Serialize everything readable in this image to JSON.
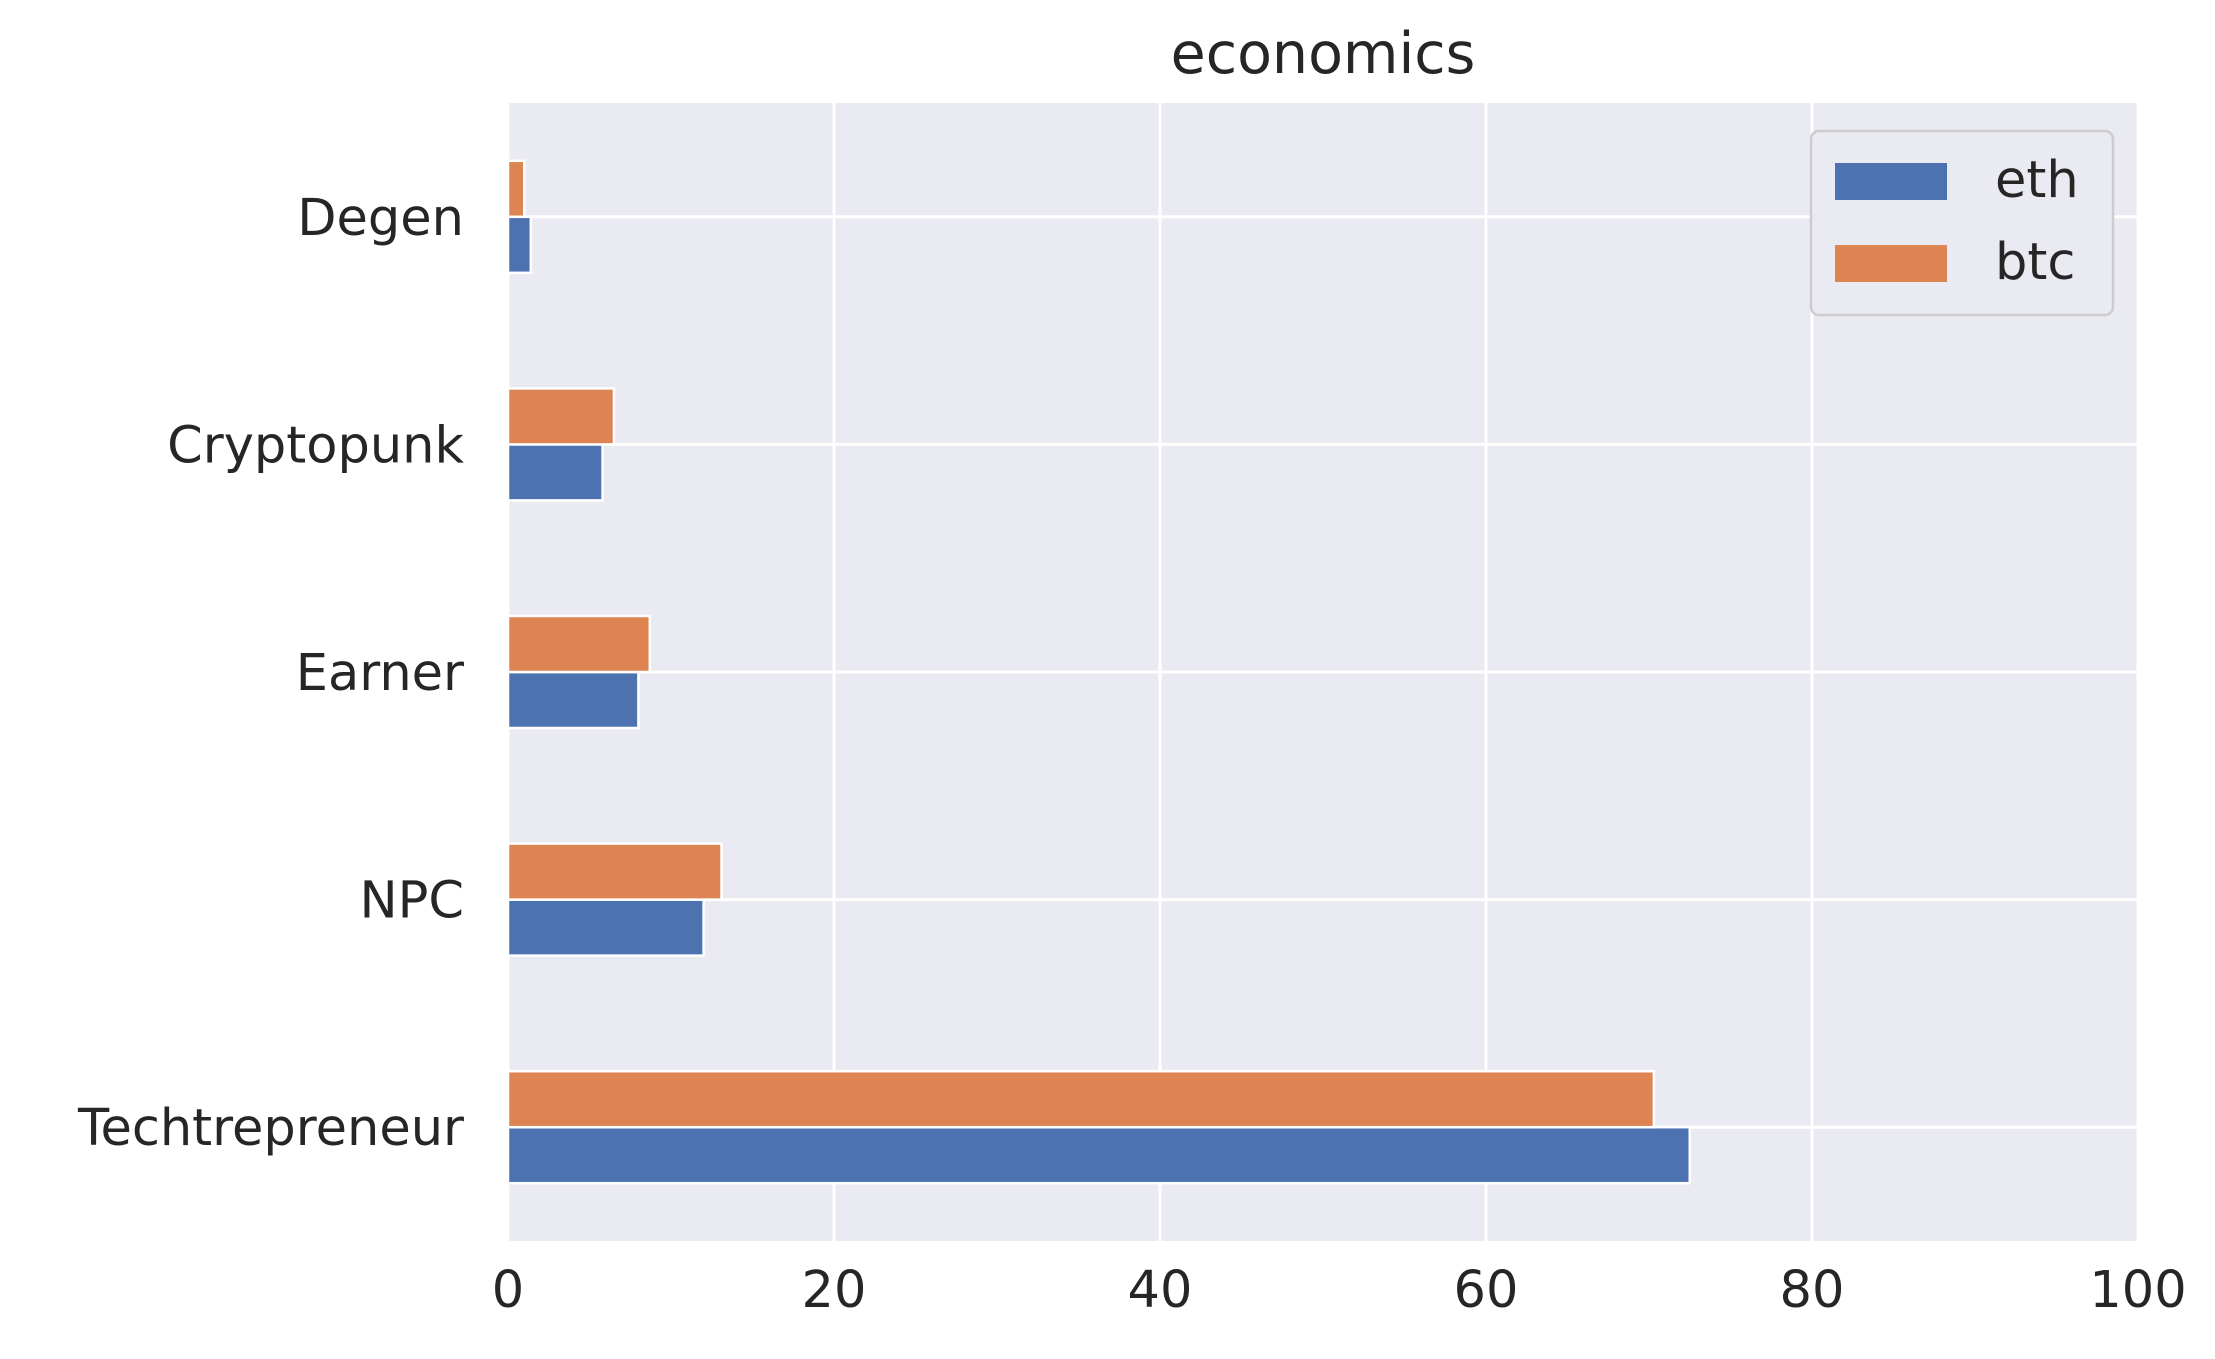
{
  "chart_data": {
    "type": "bar",
    "orientation": "horizontal",
    "title": "economics",
    "xlabel": "",
    "ylabel": "",
    "xlim": [
      0,
      100
    ],
    "xticks": [
      0,
      20,
      40,
      60,
      80,
      100
    ],
    "grid": true,
    "legend_position": "top-right",
    "categories": [
      "Degen",
      "Cryptopunk",
      "Earner",
      "NPC",
      "Techtrepreneur"
    ],
    "series": [
      {
        "name": "eth",
        "color": "#4c72b0",
        "values": [
          1.4,
          5.8,
          8.0,
          12.0,
          72.5
        ]
      },
      {
        "name": "btc",
        "color": "#dd8452",
        "values": [
          1.0,
          6.5,
          8.7,
          13.1,
          70.3
        ]
      }
    ]
  }
}
